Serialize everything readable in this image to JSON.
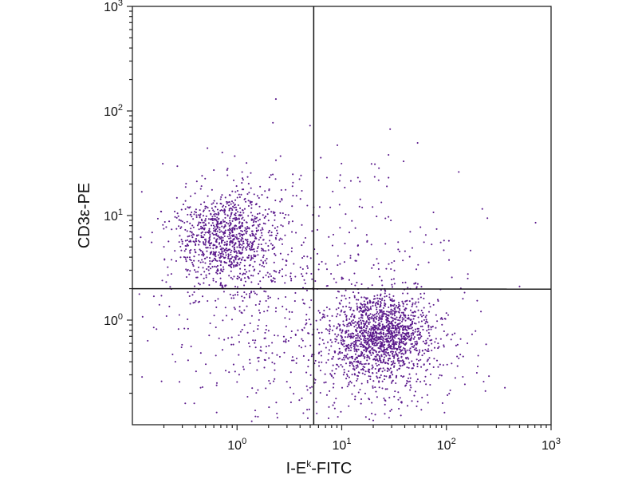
{
  "chart_data": {
    "type": "scatter",
    "title": "",
    "xlabel": {
      "prefix": "I-E",
      "superscript": "k",
      "suffix": "-FITC"
    },
    "ylabel": "CD3ε-PE",
    "xscale": "log",
    "yscale": "log",
    "xlim": [
      0.1,
      1000
    ],
    "ylim": [
      0.1,
      1000
    ],
    "x_ticks": [
      {
        "value": 1,
        "base": "10",
        "exp": "0"
      },
      {
        "value": 10,
        "base": "10",
        "exp": "1"
      },
      {
        "value": 100,
        "base": "10",
        "exp": "2"
      },
      {
        "value": 1000,
        "base": "10",
        "exp": "3"
      }
    ],
    "y_ticks": [
      {
        "value": 1,
        "base": "10",
        "exp": "0"
      },
      {
        "value": 10,
        "base": "10",
        "exp": "1"
      },
      {
        "value": 100,
        "base": "10",
        "exp": "2"
      },
      {
        "value": 1000,
        "base": "10",
        "exp": "3"
      }
    ],
    "gates": {
      "vertical_x": 5.4,
      "horizontal_y_start": 2.0,
      "horizontal_y_end": 1.98
    },
    "point_color": "#5b1a8c",
    "populations": [
      {
        "center": [
          0.78,
          6.2
        ],
        "spread": [
          0.22,
          0.22
        ],
        "count": 850
      },
      {
        "center": [
          1.2,
          5.0
        ],
        "spread": [
          0.4,
          0.42
        ],
        "count": 260
      },
      {
        "center": [
          24,
          0.7
        ],
        "spread": [
          0.22,
          0.2
        ],
        "count": 1200
      },
      {
        "center": [
          24,
          0.65
        ],
        "spread": [
          0.42,
          0.38
        ],
        "count": 520
      },
      {
        "center": [
          2.2,
          0.75
        ],
        "spread": [
          0.55,
          0.5
        ],
        "count": 300
      },
      {
        "center": [
          20,
          5.5
        ],
        "spread": [
          0.45,
          0.45
        ],
        "count": 95
      }
    ],
    "outlier_points": [
      [
        2.35,
        130
      ],
      [
        0.95,
        37
      ],
      [
        2.6,
        37
      ],
      [
        29,
        67
      ],
      [
        28,
        38
      ],
      [
        39,
        33
      ],
      [
        28,
        23
      ],
      [
        27,
        19
      ],
      [
        0.27,
        10.5
      ],
      [
        0.12,
        6.2
      ],
      [
        500,
        2.1
      ],
      [
        160,
        2.5
      ],
      [
        0.17,
        0.82
      ],
      [
        0.16,
        0.85
      ],
      [
        0.19,
        0.26
      ],
      [
        0.32,
        0.16
      ],
      [
        0.39,
        0.16
      ],
      [
        52,
        0.15
      ],
      [
        4.9,
        0.14
      ],
      [
        1.5,
        0.12
      ]
    ]
  }
}
